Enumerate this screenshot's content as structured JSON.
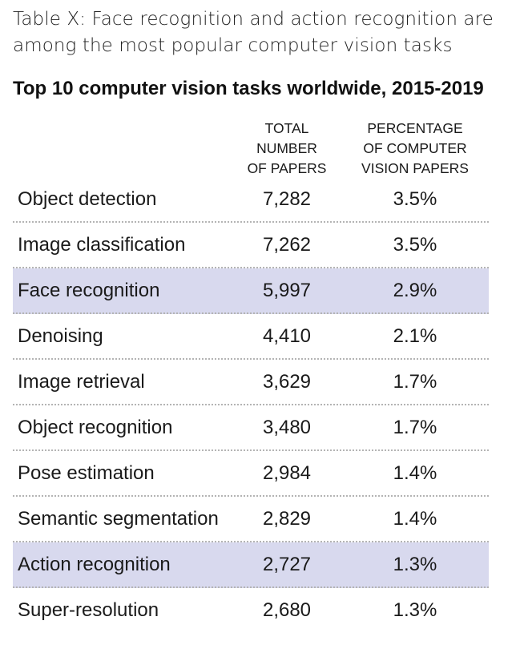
{
  "caption": "Table X: Face recognition and action recognition are among the most popular computer vision tasks",
  "chart_data": {
    "type": "table",
    "title": "Top 10 computer vision tasks worldwide, 2015-2019",
    "columns": [
      {
        "key": "task",
        "label": ""
      },
      {
        "key": "papers",
        "label": "TOTAL NUMBER OF PAPERS",
        "lines": [
          "TOTAL",
          "NUMBER",
          "OF PAPERS"
        ]
      },
      {
        "key": "pct",
        "label": "PERCENTAGE OF COMPUTER VISION PAPERS",
        "lines": [
          "PERCENTAGE",
          "OF COMPUTER",
          "VISION PAPERS"
        ]
      }
    ],
    "rows": [
      {
        "task": "Object detection",
        "papers": "7,282",
        "pct": "3.5%",
        "highlight": false
      },
      {
        "task": "Image classification",
        "papers": "7,262",
        "pct": "3.5%",
        "highlight": false
      },
      {
        "task": "Face recognition",
        "papers": "5,997",
        "pct": "2.9%",
        "highlight": true
      },
      {
        "task": "Denoising",
        "papers": "4,410",
        "pct": "2.1%",
        "highlight": false
      },
      {
        "task": "Image retrieval",
        "papers": "3,629",
        "pct": "1.7%",
        "highlight": false
      },
      {
        "task": "Object recognition",
        "papers": "3,480",
        "pct": "1.7%",
        "highlight": false
      },
      {
        "task": "Pose estimation",
        "papers": "2,984",
        "pct": "1.4%",
        "highlight": false
      },
      {
        "task": "Semantic segmentation",
        "papers": "2,829",
        "pct": "1.4%",
        "highlight": false
      },
      {
        "task": "Action recognition",
        "papers": "2,727",
        "pct": "1.3%",
        "highlight": true
      },
      {
        "task": "Super-resolution",
        "papers": "2,680",
        "pct": "1.3%",
        "highlight": false
      }
    ]
  },
  "colors": {
    "highlight_row": "#d8d9ee",
    "divider": "#b4b4b4",
    "text": "#1a1a1a"
  }
}
